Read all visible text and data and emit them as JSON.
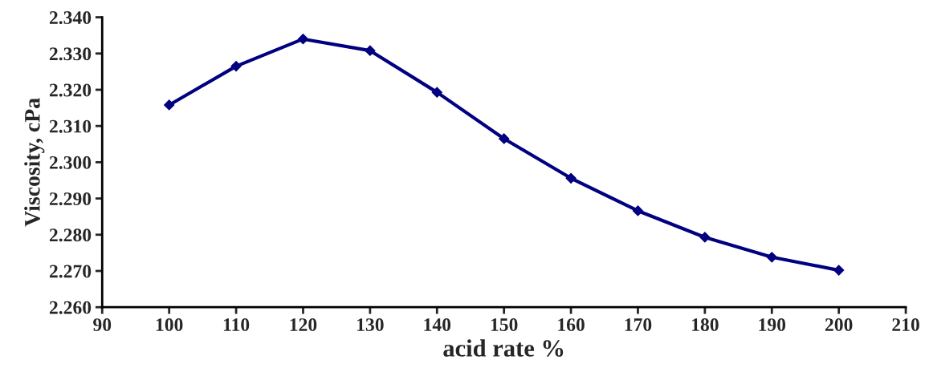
{
  "chart_data": {
    "type": "line",
    "xlabel": "acid rate %",
    "ylabel": "Viscosity, cPa",
    "x": [
      100,
      110,
      120,
      130,
      140,
      150,
      160,
      170,
      180,
      190,
      200
    ],
    "series": [
      {
        "color": "#000080",
        "values": [
          2.3158,
          2.3265,
          2.334,
          2.3308,
          2.3193,
          2.3065,
          2.2956,
          2.2866,
          2.2793,
          2.2738,
          2.2702
        ]
      }
    ],
    "xlim": [
      90,
      210
    ],
    "xticks": [
      90,
      100,
      110,
      120,
      130,
      140,
      150,
      160,
      170,
      180,
      190,
      200,
      210
    ],
    "ylim": [
      2.26,
      2.34
    ],
    "yticks": [
      {
        "value": 2.26,
        "label": "2.260"
      },
      {
        "value": 2.27,
        "label": "2.270"
      },
      {
        "value": 2.28,
        "label": "2.280"
      },
      {
        "value": 2.29,
        "label": "2.290"
      },
      {
        "value": 2.3,
        "label": "2.300"
      },
      {
        "value": 2.31,
        "label": "2.310"
      },
      {
        "value": 2.32,
        "label": "2.320"
      },
      {
        "value": 2.33,
        "label": "2.330"
      },
      {
        "value": 2.34,
        "label": "2.340"
      }
    ],
    "marker": "diamond",
    "line_style": "solid",
    "grid": false,
    "legend": false
  }
}
